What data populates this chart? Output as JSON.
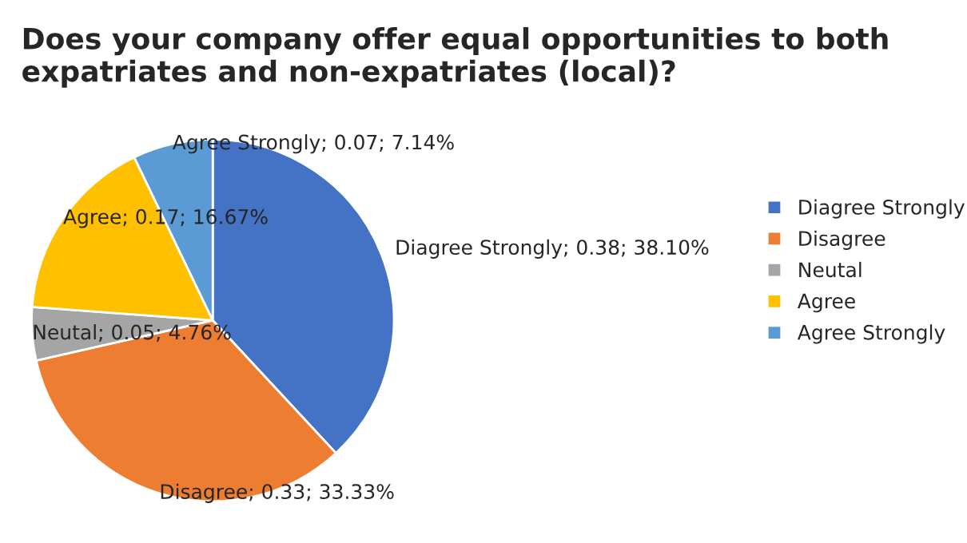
{
  "chart_data": {
    "type": "pie",
    "title": "Does your company offer equal opportunities to both expatriates and non-expatriates (local)?",
    "categories": [
      "Diagree Strongly",
      "Disagree",
      "Neutal",
      "Agree",
      "Agree Strongly"
    ],
    "values": [
      38.1,
      33.33,
      4.76,
      16.67,
      7.14
    ],
    "colors": [
      "#4472c4",
      "#ed7d31",
      "#a5a5a5",
      "#ffc000",
      "#5b9bd5"
    ],
    "value_labels": [
      "Diagree Strongly; 0.38; 38.10%",
      "Disagree; 0.33; 33.33%",
      "Neutal; 0.05; 4.76%",
      "Agree; 0.17; 16.67%",
      "Agree Strongly; 0.07; 7.14%"
    ],
    "legend": "right"
  }
}
